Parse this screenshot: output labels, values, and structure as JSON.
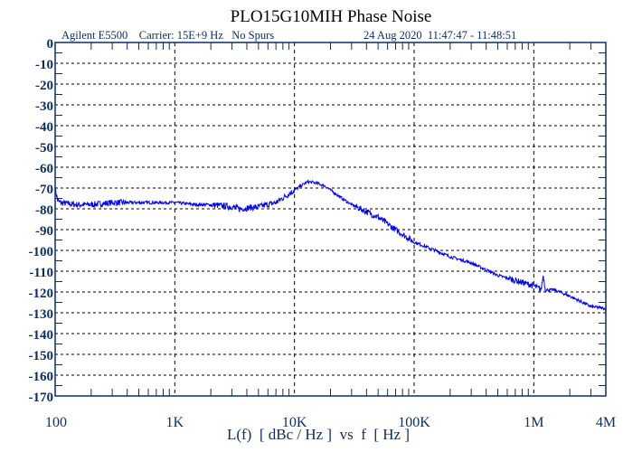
{
  "chart_data": {
    "type": "line",
    "title": "PLO15G10MIH Phase Noise",
    "subtitle_left": "Agilent E5500    Carrier: 15E+9 Hz   No Spurs",
    "subtitle_right": "24 Aug 2020  11:47:47 - 11:48:51",
    "xlabel": "L(f)  [ dBc / Hz ]  vs  f  [ Hz ]",
    "x_scale": "log",
    "xlim": [
      100,
      4000000
    ],
    "ylim": [
      -170,
      0
    ],
    "x_ticks": [
      {
        "v": 100,
        "label": "100"
      },
      {
        "v": 1000,
        "label": "1K"
      },
      {
        "v": 10000,
        "label": "10K"
      },
      {
        "v": 100000,
        "label": "100K"
      },
      {
        "v": 1000000,
        "label": "1M"
      },
      {
        "v": 4000000,
        "label": "4M"
      }
    ],
    "y_ticks": [
      0,
      -10,
      -20,
      -30,
      -40,
      -50,
      -60,
      -70,
      -80,
      -90,
      -100,
      -110,
      -120,
      -130,
      -140,
      -150,
      -160,
      -170
    ],
    "grid": true,
    "colors": {
      "trace": "#0000ff",
      "axis": "#0d2f66",
      "grid": "#000000"
    },
    "series": [
      {
        "x": [
          100,
          105,
          110,
          150,
          200,
          300,
          500,
          700,
          1000,
          1500,
          2000,
          3000,
          3500,
          5000,
          7000,
          10000,
          12000,
          13000,
          15000,
          18000,
          20000,
          25000,
          30000,
          50000,
          70000,
          100000,
          150000,
          200000,
          300000,
          500000,
          1000000,
          1150000,
          1200000,
          1250000,
          1500000,
          2000000,
          3000000,
          4000000
        ],
        "y": [
          -70,
          -76,
          -77,
          -78,
          -78,
          -77,
          -77,
          -77,
          -77,
          -78,
          -78,
          -79,
          -80,
          -79,
          -77,
          -71,
          -68,
          -67,
          -67.5,
          -69,
          -71,
          -75,
          -78,
          -84,
          -90,
          -96,
          -100,
          -103,
          -106,
          -112,
          -117,
          -119,
          -112,
          -119,
          -119,
          -122,
          -127,
          -128
        ]
      }
    ]
  }
}
